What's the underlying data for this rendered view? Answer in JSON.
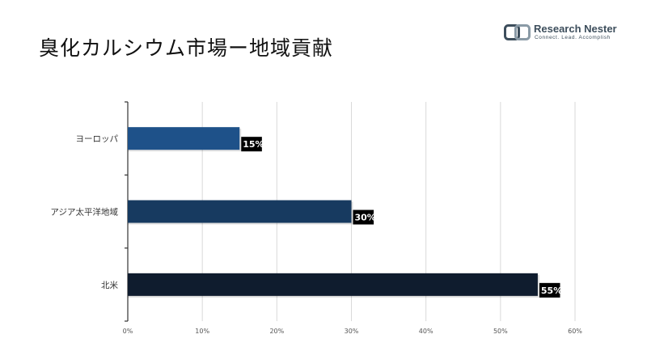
{
  "title": "臭化カルシウム市場ー地域貢献",
  "logo": {
    "name": "Research Nester",
    "tagline": "Connect. Lead. Accomplish"
  },
  "chart_data": {
    "type": "bar",
    "orientation": "horizontal",
    "categories": [
      "ヨーロッパ",
      "アジア太平洋地域",
      "北米"
    ],
    "values": [
      15,
      30,
      55
    ],
    "value_labels": [
      "15%",
      "30%",
      "55%"
    ],
    "bar_colors": [
      "#1e5189",
      "#173a60",
      "#0f1c2e"
    ],
    "xlim": [
      0,
      60
    ],
    "x_ticks": [
      "0%",
      "10%",
      "20%",
      "30%",
      "40%",
      "50%",
      "60%"
    ],
    "grid": true,
    "legend": "none",
    "title": "",
    "xlabel": "",
    "ylabel": ""
  }
}
